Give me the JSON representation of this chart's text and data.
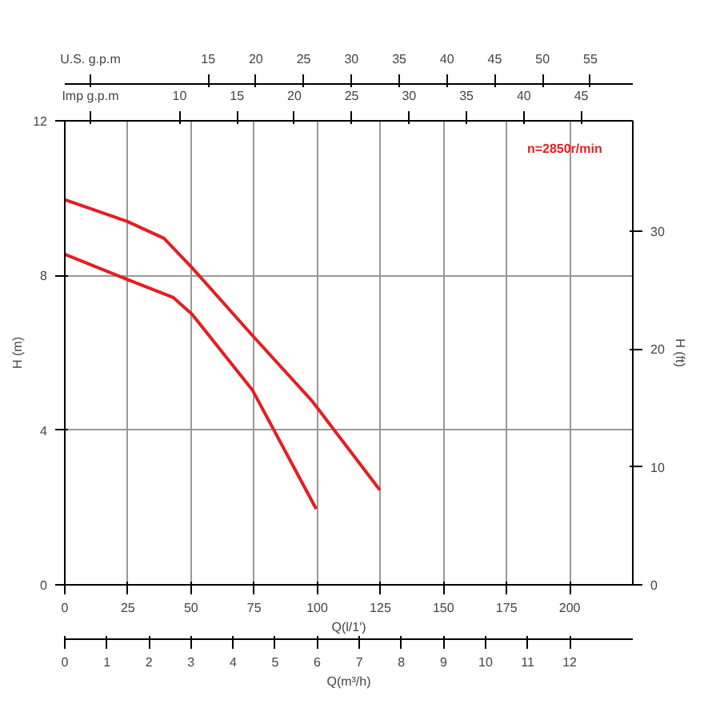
{
  "chart_data": {
    "type": "line",
    "xlabel": "Q(l/1')",
    "ylabel": "H (m)",
    "y2label": "H (ft)",
    "x2label": "Q(m³/h)",
    "xlim": [
      0,
      225
    ],
    "xticks": [
      0,
      25,
      50,
      75,
      100,
      125,
      150,
      175,
      200
    ],
    "x2lim": [
      0,
      13.5
    ],
    "x2ticks": [
      0,
      1,
      2,
      3,
      4,
      5,
      6,
      7,
      8,
      9,
      10,
      11,
      12
    ],
    "ylim": [
      0,
      12
    ],
    "yticks": [
      0,
      4,
      8,
      12
    ],
    "y2lim": [
      0,
      39.37
    ],
    "y2ticks": [
      0,
      10,
      20,
      30
    ],
    "grid": true,
    "line_style": "solid",
    "annotations": [
      "n=2850r/min",
      "Imp g.p.m",
      "10",
      "15",
      "20",
      "25",
      "30",
      "35",
      "40",
      "45",
      "U.S. g.p.m",
      "15",
      "20",
      "25",
      "30",
      "35",
      "40",
      "45",
      "50",
      "55"
    ],
    "series": [
      {
        "color": "#e31e24",
        "x": [
          0,
          24.6,
          43,
          50.4,
          74.3,
          99.6
        ],
        "values": [
          8.55,
          7.9,
          7.43,
          7.0,
          5.04,
          1.96
        ]
      },
      {
        "color": "#e31e24",
        "x": [
          0,
          24.6,
          39.3,
          50.4,
          74.3,
          98,
          124.8
        ],
        "values": [
          9.96,
          9.4,
          8.96,
          8.2,
          6.45,
          4.75,
          2.45
        ]
      }
    ]
  }
}
